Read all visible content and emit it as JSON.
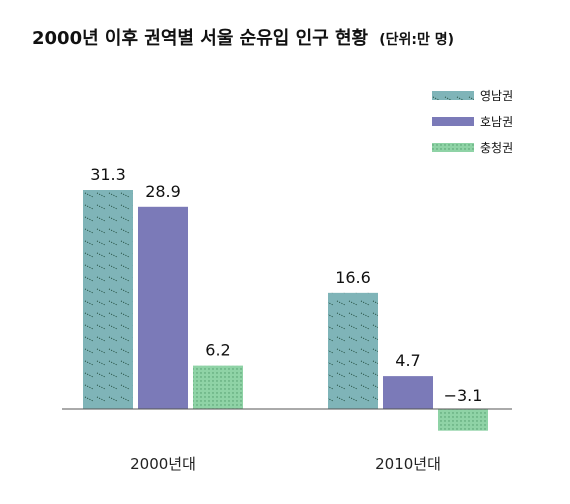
{
  "chart_data": {
    "type": "bar",
    "title": "2000년 이후 권역별 서울 순유입 인구 현황",
    "unit_note": "(단위:만 명)",
    "categories": [
      "2000년대",
      "2010년대"
    ],
    "series": [
      {
        "name": "영남권",
        "values": [
          31.3,
          16.6
        ],
        "labels": [
          "31.3",
          "16.6"
        ],
        "color": "#7fb4b8"
      },
      {
        "name": "호남권",
        "values": [
          28.9,
          4.7
        ],
        "labels": [
          "28.9",
          "4.7"
        ],
        "color": "#7b7ab8"
      },
      {
        "name": "충청권",
        "values": [
          6.2,
          -3.1
        ],
        "labels": [
          "6.2",
          "−3.1"
        ],
        "color": "#8fd3a6"
      }
    ],
    "ylim": [
      -3.1,
      31.3
    ],
    "grid": false,
    "legend_position": "top-right"
  }
}
